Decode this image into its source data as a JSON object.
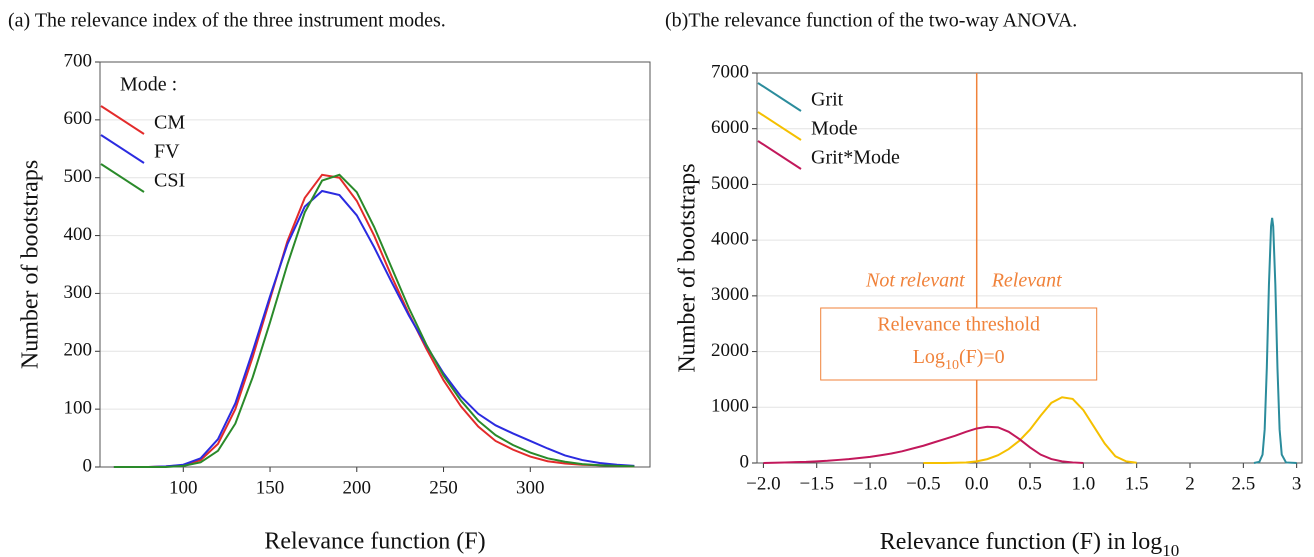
{
  "chart_data": [
    {
      "type": "line",
      "title": "(a) The relevance index of the three instrument modes.",
      "x_label": "Relevance function (F)",
      "y_label": "Number of bootstraps",
      "x": [
        60,
        70,
        80,
        90,
        100,
        110,
        120,
        130,
        140,
        150,
        160,
        170,
        180,
        190,
        200,
        210,
        220,
        230,
        240,
        250,
        260,
        270,
        280,
        290,
        300,
        310,
        320,
        330,
        340,
        350,
        360
      ],
      "series": [
        {
          "name": "CM",
          "color": "#e32b2b",
          "values": [
            0,
            0,
            0,
            1,
            3,
            12,
            40,
            100,
            190,
            290,
            390,
            465,
            505,
            500,
            460,
            400,
            330,
            265,
            205,
            150,
            105,
            70,
            45,
            30,
            18,
            10,
            6,
            4,
            3,
            2,
            1
          ]
        },
        {
          "name": "FV",
          "color": "#2b2be0",
          "values": [
            0,
            0,
            0,
            1,
            4,
            15,
            48,
            110,
            200,
            295,
            385,
            450,
            477,
            470,
            435,
            380,
            320,
            262,
            210,
            162,
            122,
            92,
            72,
            58,
            45,
            32,
            20,
            12,
            7,
            4,
            2
          ]
        },
        {
          "name": "CSI",
          "color": "#2a8a2a",
          "values": [
            0,
            0,
            0,
            0,
            2,
            8,
            28,
            75,
            155,
            250,
            350,
            440,
            495,
            505,
            475,
            415,
            345,
            275,
            212,
            158,
            115,
            80,
            55,
            38,
            25,
            15,
            9,
            5,
            3,
            2,
            1
          ]
        }
      ],
      "legend_title": "Mode :",
      "legend": "upper left",
      "grid": true,
      "xlim": [
        52,
        369
      ],
      "xticks": [
        100,
        150,
        200,
        250,
        300
      ],
      "ylim": [
        0,
        700
      ],
      "yticks": [
        0,
        100,
        200,
        300,
        400,
        500,
        600,
        700
      ]
    },
    {
      "type": "line",
      "title": "(b)The relevance function of the two-way ANOVA.",
      "x_label": {
        "text": "Relevance function (F) in log",
        "sub": "10"
      },
      "y_label": "Number of bootstraps",
      "series": [
        {
          "name": "Grit",
          "color": "#2b8c9c",
          "x": [
            2.6,
            2.65,
            2.68,
            2.7,
            2.72,
            2.74,
            2.76,
            2.77,
            2.78,
            2.8,
            2.82,
            2.84,
            2.86,
            2.9,
            3.0
          ],
          "values": [
            0,
            20,
            150,
            600,
            1700,
            3200,
            4250,
            4400,
            4250,
            3200,
            1700,
            600,
            150,
            10,
            0
          ]
        },
        {
          "name": "Mode",
          "color": "#f5c000",
          "x": [
            -0.5,
            -0.4,
            -0.3,
            -0.2,
            -0.1,
            0,
            0.1,
            0.2,
            0.3,
            0.4,
            0.5,
            0.6,
            0.7,
            0.8,
            0.9,
            1.0,
            1.1,
            1.2,
            1.3,
            1.4,
            1.5
          ],
          "values": [
            0,
            0,
            0,
            5,
            10,
            30,
            70,
            140,
            250,
            400,
            600,
            850,
            1080,
            1180,
            1150,
            950,
            650,
            350,
            120,
            30,
            5
          ]
        },
        {
          "name": "Grit*Mode",
          "color": "#c2185b",
          "x": [
            -2,
            -1.9,
            -1.8,
            -1.7,
            -1.6,
            -1.5,
            -1.4,
            -1.3,
            -1.2,
            -1.1,
            -1,
            -0.9,
            -0.8,
            -0.7,
            -0.6,
            -0.5,
            -0.4,
            -0.3,
            -0.2,
            -0.1,
            0,
            0.1,
            0.2,
            0.3,
            0.4,
            0.5,
            0.6,
            0.7,
            0.8,
            0.9,
            1.0
          ],
          "values": [
            0,
            5,
            10,
            15,
            20,
            30,
            40,
            55,
            70,
            90,
            110,
            140,
            170,
            210,
            260,
            310,
            370,
            430,
            490,
            560,
            620,
            650,
            640,
            560,
            430,
            280,
            150,
            70,
            30,
            10,
            0
          ]
        }
      ],
      "legend": "upper left",
      "grid": true,
      "xlim": [
        -2.06,
        3.05
      ],
      "xticks": [
        {
          "value": -2,
          "label": "−2.0"
        },
        {
          "value": -1.5,
          "label": "−1.5"
        },
        {
          "value": -1,
          "label": "−1.0"
        },
        {
          "value": -0.5,
          "label": "−0.5"
        },
        {
          "value": 0,
          "label": "0.0"
        },
        0.5,
        {
          "value": 1,
          "label": "1.0"
        },
        1.5,
        2,
        2.5,
        3
      ],
      "ylim": [
        0,
        7000
      ],
      "yticks": [
        0,
        1000,
        2000,
        3000,
        4000,
        5000,
        6000,
        7000
      ],
      "threshold": {
        "x": 0,
        "label": "Relevance threshold",
        "formula": [
          "Log",
          "10",
          "(F)=0"
        ],
        "left_note": "Not relevant",
        "right_note": "Relevant",
        "color": "#f0823a"
      }
    }
  ]
}
